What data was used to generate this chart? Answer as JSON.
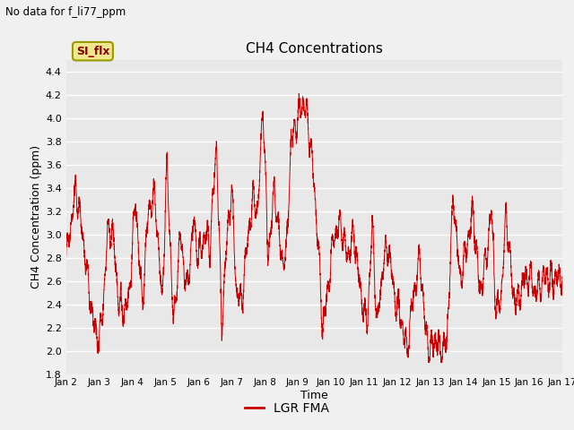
{
  "title": "CH4 Concentrations",
  "no_data_label": "No data for f_li77_ppm",
  "xlabel": "Time",
  "ylabel": "CH4 Concentration (ppm)",
  "ylim": [
    1.8,
    4.5
  ],
  "yticks": [
    1.8,
    2.0,
    2.2,
    2.4,
    2.6,
    2.8,
    3.0,
    3.2,
    3.4,
    3.6,
    3.8,
    4.0,
    4.2,
    4.4
  ],
  "legend_label": "LGR FMA",
  "legend_box_label": "SI_flx",
  "line_color": "#cc0000",
  "fig_facecolor": "#f0f0f0",
  "plot_facecolor": "#e8e8e8",
  "grid_color": "#ffffff",
  "x_start_day": 2,
  "x_end_day": 17,
  "x_tick_days": [
    2,
    3,
    4,
    5,
    6,
    7,
    8,
    9,
    10,
    11,
    12,
    13,
    14,
    15,
    16,
    17
  ]
}
